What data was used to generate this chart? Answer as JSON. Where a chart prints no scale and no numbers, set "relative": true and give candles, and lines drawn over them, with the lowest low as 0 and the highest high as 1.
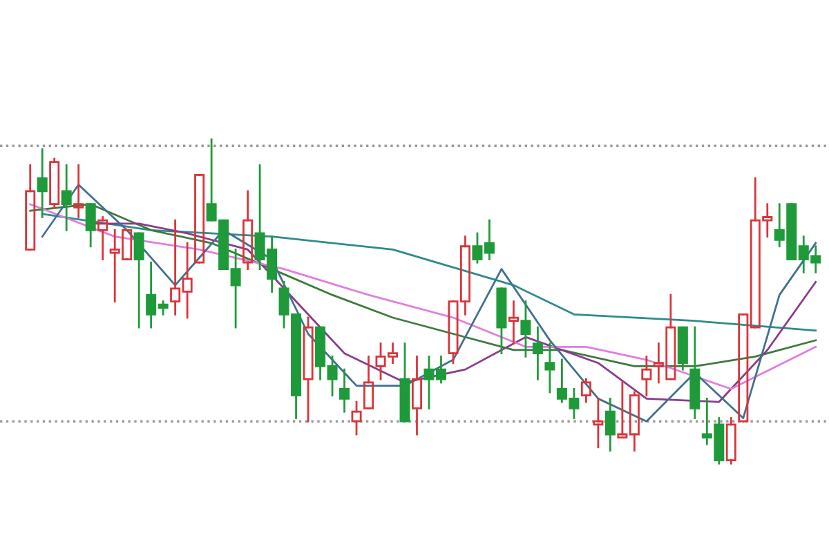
{
  "chart_data": {
    "type": "candlestick",
    "relative": true,
    "categories": [
      null,
      null,
      null,
      null,
      null,
      null,
      null,
      null,
      null,
      null,
      null,
      null,
      null,
      null,
      null,
      null,
      null,
      null,
      null,
      null,
      null,
      null,
      null,
      null,
      null,
      null,
      null,
      null,
      null,
      null,
      null,
      null,
      null,
      null,
      null,
      null,
      null,
      null,
      null,
      null,
      null,
      null,
      null,
      null,
      null,
      null,
      null,
      null,
      null,
      null,
      null,
      null,
      null,
      null,
      null,
      null,
      null,
      null,
      null,
      null,
      null,
      null,
      null,
      null,
      null,
      null
    ],
    "ohlc": [
      [
        0.66,
        0.92,
        0.66,
        0.84
      ],
      [
        0.88,
        0.97,
        0.76,
        0.84
      ],
      [
        0.8,
        0.94,
        0.79,
        0.93
      ],
      [
        0.84,
        0.92,
        0.72,
        0.8
      ],
      [
        0.79,
        0.92,
        0.76,
        0.8
      ],
      [
        0.8,
        0.8,
        0.67,
        0.72
      ],
      [
        0.72,
        0.76,
        0.63,
        0.75
      ],
      [
        0.65,
        0.72,
        0.5,
        0.66
      ],
      [
        0.63,
        0.72,
        0.63,
        0.72
      ],
      [
        0.71,
        0.71,
        0.42,
        0.63
      ],
      [
        0.52,
        0.62,
        0.42,
        0.46
      ],
      [
        0.49,
        0.5,
        0.46,
        0.48
      ],
      [
        0.5,
        0.75,
        0.46,
        0.54
      ],
      [
        0.53,
        0.68,
        0.45,
        0.57
      ],
      [
        0.62,
        0.89,
        0.62,
        0.89
      ],
      [
        0.8,
        1.0,
        0.75,
        0.75
      ],
      [
        0.75,
        0.75,
        0.6,
        0.6
      ],
      [
        0.6,
        0.66,
        0.42,
        0.55
      ],
      [
        0.62,
        0.84,
        0.6,
        0.75
      ],
      [
        0.71,
        0.92,
        0.6,
        0.63
      ],
      [
        0.66,
        0.7,
        0.53,
        0.57
      ],
      [
        0.54,
        0.56,
        0.42,
        0.46
      ],
      [
        0.46,
        0.46,
        0.14,
        0.21
      ],
      [
        0.26,
        0.45,
        0.13,
        0.42
      ],
      [
        0.42,
        0.42,
        0.26,
        0.3
      ],
      [
        0.3,
        0.33,
        0.21,
        0.26
      ],
      [
        0.23,
        0.29,
        0.16,
        0.2
      ],
      [
        0.13,
        0.19,
        0.09,
        0.16
      ],
      [
        0.17,
        0.33,
        0.17,
        0.25
      ],
      [
        0.3,
        0.37,
        0.26,
        0.33
      ],
      [
        0.33,
        0.37,
        0.31,
        0.34
      ],
      [
        0.26,
        0.37,
        0.13,
        0.13
      ],
      [
        0.17,
        0.33,
        0.09,
        0.26
      ],
      [
        0.29,
        0.33,
        0.17,
        0.26
      ],
      [
        0.29,
        0.33,
        0.25,
        0.26
      ],
      [
        0.34,
        0.5,
        0.31,
        0.5
      ],
      [
        0.5,
        0.7,
        0.46,
        0.67
      ],
      [
        0.67,
        0.71,
        0.62,
        0.63
      ],
      [
        0.68,
        0.75,
        0.63,
        0.65
      ],
      [
        0.54,
        0.54,
        0.34,
        0.42
      ],
      [
        0.44,
        0.5,
        0.37,
        0.45
      ],
      [
        0.44,
        0.5,
        0.33,
        0.4
      ],
      [
        0.37,
        0.42,
        0.26,
        0.34
      ],
      [
        0.31,
        0.37,
        0.22,
        0.29
      ],
      [
        0.23,
        0.32,
        0.19,
        0.2
      ],
      [
        0.2,
        0.23,
        0.14,
        0.17
      ],
      [
        0.21,
        0.26,
        0.19,
        0.25
      ],
      [
        0.12,
        0.2,
        0.05,
        0.13
      ],
      [
        0.16,
        0.2,
        0.04,
        0.09
      ],
      [
        0.08,
        0.25,
        0.08,
        0.09
      ],
      [
        0.09,
        0.22,
        0.04,
        0.21
      ],
      [
        0.26,
        0.33,
        0.21,
        0.29
      ],
      [
        0.3,
        0.37,
        0.25,
        0.31
      ],
      [
        0.26,
        0.52,
        0.26,
        0.42
      ],
      [
        0.42,
        0.42,
        0.29,
        0.31
      ],
      [
        0.29,
        0.42,
        0.14,
        0.17
      ],
      [
        0.09,
        0.2,
        0.06,
        0.08
      ],
      [
        0.12,
        0.14,
        0.0,
        0.01
      ],
      [
        0.01,
        0.14,
        0.0,
        0.12
      ],
      [
        0.13,
        0.46,
        0.13,
        0.46
      ],
      [
        0.42,
        0.88,
        0.42,
        0.75
      ],
      [
        0.75,
        0.8,
        0.7,
        0.76
      ],
      [
        0.72,
        0.8,
        0.67,
        0.69
      ],
      [
        0.8,
        0.8,
        0.63,
        0.63
      ],
      [
        0.67,
        0.7,
        0.59,
        0.63
      ],
      [
        0.64,
        0.67,
        0.59,
        0.62
      ]
    ],
    "colors": [
      "#d9343a",
      "#1f9a3a",
      "#d9343a",
      "#1f9a3a",
      "#d9343a",
      "#1f9a3a",
      "#d9343a",
      "#d9343a",
      "#d9343a",
      "#1f9a3a",
      "#1f9a3a",
      "#1f9a3a",
      "#d9343a",
      "#d9343a",
      "#d9343a",
      "#1f9a3a",
      "#1f9a3a",
      "#1f9a3a",
      "#d9343a",
      "#1f9a3a",
      "#1f9a3a",
      "#1f9a3a",
      "#1f9a3a",
      "#d9343a",
      "#1f9a3a",
      "#1f9a3a",
      "#1f9a3a",
      "#d9343a",
      "#d9343a",
      "#d9343a",
      "#d9343a",
      "#1f9a3a",
      "#d9343a",
      "#1f9a3a",
      "#1f9a3a",
      "#d9343a",
      "#d9343a",
      "#1f9a3a",
      "#1f9a3a",
      "#1f9a3a",
      "#d9343a",
      "#1f9a3a",
      "#1f9a3a",
      "#1f9a3a",
      "#1f9a3a",
      "#1f9a3a",
      "#d9343a",
      "#d9343a",
      "#1f9a3a",
      "#d9343a",
      "#d9343a",
      "#d9343a",
      "#d9343a",
      "#d9343a",
      "#1f9a3a",
      "#1f9a3a",
      "#1f9a3a",
      "#1f9a3a",
      "#d9343a",
      "#d9343a",
      "#d9343a",
      "#d9343a",
      "#1f9a3a",
      "#1f9a3a",
      "#1f9a3a",
      "#1f9a3a"
    ],
    "series": [
      {
        "type": "line",
        "color": "#2e8b8b",
        "values": [
          null,
          0.77,
          null,
          null,
          null,
          null,
          null,
          null,
          null,
          null,
          0.72,
          null,
          null,
          null,
          null,
          null,
          null,
          null,
          null,
          null,
          0.7,
          null,
          null,
          null,
          null,
          null,
          null,
          null,
          null,
          null,
          0.66,
          null,
          null,
          null,
          null,
          null,
          null,
          null,
          null,
          null,
          0.55,
          null,
          null,
          null,
          null,
          0.46,
          null,
          null,
          null,
          null,
          null,
          null,
          null,
          null,
          null,
          0.44,
          null,
          null,
          null,
          null,
          null,
          null,
          null,
          null,
          null,
          0.41
        ]
      },
      {
        "type": "line",
        "color": "#3d7a3d",
        "values": [
          0.78,
          null,
          null,
          null,
          null,
          0.8,
          null,
          null,
          null,
          null,
          0.72,
          null,
          null,
          null,
          null,
          0.68,
          null,
          null,
          null,
          null,
          0.6,
          null,
          null,
          null,
          null,
          0.52,
          null,
          null,
          null,
          null,
          0.45,
          null,
          null,
          null,
          null,
          0.4,
          null,
          null,
          null,
          null,
          0.35,
          null,
          null,
          null,
          0.35,
          null,
          null,
          null,
          null,
          null,
          0.3,
          null,
          null,
          null,
          null,
          0.3,
          null,
          null,
          null,
          null,
          0.33,
          null,
          null,
          null,
          null,
          0.38
        ]
      },
      {
        "type": "line",
        "color": "#8b3a8b",
        "values": [
          null,
          null,
          null,
          null,
          null,
          0.74,
          null,
          null,
          null,
          0.74,
          null,
          null,
          null,
          0.71,
          null,
          null,
          null,
          null,
          0.66,
          null,
          null,
          null,
          0.5,
          null,
          null,
          null,
          0.34,
          null,
          null,
          null,
          null,
          0.25,
          null,
          null,
          null,
          null,
          0.29,
          null,
          null,
          null,
          null,
          0.39,
          null,
          null,
          null,
          null,
          null,
          0.31,
          null,
          null,
          null,
          0.2,
          null,
          null,
          null,
          null,
          null,
          0.19,
          null,
          null,
          null,
          0.35,
          null,
          null,
          null,
          0.56
        ]
      },
      {
        "type": "line",
        "color": "#e07de0",
        "values": [
          0.8,
          null,
          null,
          null,
          null,
          null,
          null,
          0.7,
          null,
          null,
          null,
          null,
          null,
          null,
          0.66,
          null,
          null,
          null,
          null,
          null,
          null,
          0.6,
          null,
          null,
          null,
          null,
          null,
          null,
          0.52,
          null,
          null,
          null,
          null,
          null,
          null,
          0.45,
          null,
          null,
          null,
          null,
          null,
          0.36,
          null,
          null,
          null,
          null,
          0.36,
          null,
          null,
          null,
          null,
          0.32,
          null,
          null,
          null,
          null,
          null,
          null,
          0.23,
          null,
          null,
          null,
          null,
          null,
          null,
          0.36
        ]
      },
      {
        "type": "line",
        "color": "#40708f",
        "values": [
          null,
          0.7,
          null,
          null,
          0.86,
          null,
          null,
          null,
          0.72,
          null,
          null,
          null,
          0.55,
          null,
          null,
          null,
          0.72,
          null,
          null,
          null,
          0.63,
          null,
          null,
          0.4,
          null,
          null,
          null,
          0.24,
          null,
          null,
          null,
          0.24,
          null,
          null,
          null,
          0.32,
          null,
          null,
          null,
          0.6,
          null,
          null,
          null,
          0.38,
          null,
          null,
          null,
          0.2,
          null,
          null,
          null,
          0.13,
          null,
          null,
          null,
          0.28,
          null,
          null,
          null,
          0.14,
          null,
          null,
          0.52,
          null,
          null,
          0.68
        ]
      }
    ],
    "ref_lines": [
      {
        "axis": "y",
        "value": 0.98,
        "color": "#999999",
        "line_style": "dotted"
      },
      {
        "axis": "y",
        "value": 0.13,
        "color": "#999999",
        "line_style": "dotted"
      }
    ]
  }
}
